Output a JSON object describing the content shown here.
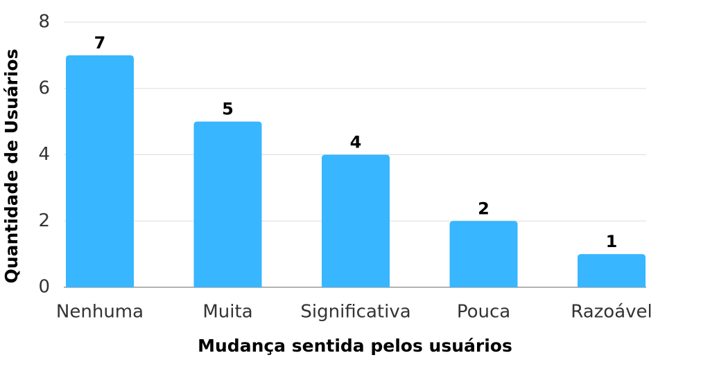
{
  "chart_data": {
    "type": "bar",
    "x_label": "Mudança sentida pelos usuários",
    "y_label": "Quantidade de Usuários",
    "categories": [
      "Nenhuma",
      "Muita",
      "Significativa",
      "Pouca",
      "Razoável"
    ],
    "values": [
      7,
      5,
      4,
      2,
      1
    ],
    "color": "#38b6ff",
    "ylim": [
      0,
      8
    ],
    "yticks": [
      0,
      2,
      4,
      6,
      8
    ],
    "grid": true
  }
}
